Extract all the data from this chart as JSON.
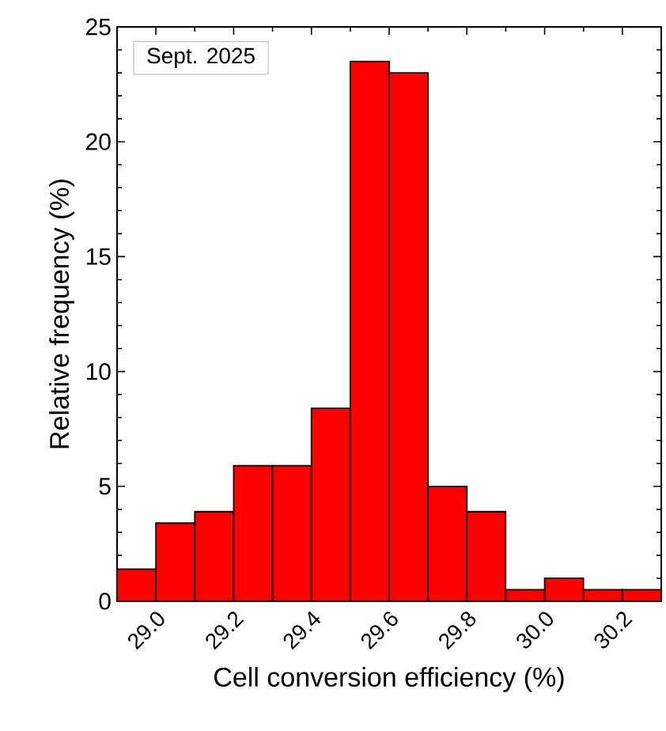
{
  "chart_data": {
    "type": "histogram",
    "xlabel": "Cell conversion efficiency (%)",
    "ylabel": "Relative frequency (%)",
    "annotations": [
      "Sept. 2025"
    ],
    "bins": [
      28.9,
      29.0,
      29.1,
      29.2,
      29.3,
      29.4,
      29.5,
      29.6,
      29.7,
      29.8,
      29.9,
      30.0,
      30.1,
      30.2,
      30.3
    ],
    "values": [
      1.4,
      3.4,
      3.9,
      5.9,
      5.9,
      8.4,
      23.5,
      23.0,
      5.0,
      3.9,
      0.5,
      1.0,
      0.5,
      0.5
    ],
    "color": "#ff0000",
    "xlim": [
      28.9,
      30.3
    ],
    "ylim": [
      0,
      25
    ],
    "xticks": [
      {
        "value": 29.0,
        "label": "29.0"
      },
      {
        "value": 29.2,
        "label": "29.2"
      },
      {
        "value": 29.4,
        "label": "29.4"
      },
      {
        "value": 29.6,
        "label": "29.6"
      },
      {
        "value": 29.8,
        "label": "29.8"
      },
      {
        "value": 30.0,
        "label": "30.0"
      },
      {
        "value": 30.2,
        "label": "30.2"
      }
    ],
    "yticks": [
      0,
      5,
      10,
      15,
      20,
      25
    ],
    "grid": false
  }
}
